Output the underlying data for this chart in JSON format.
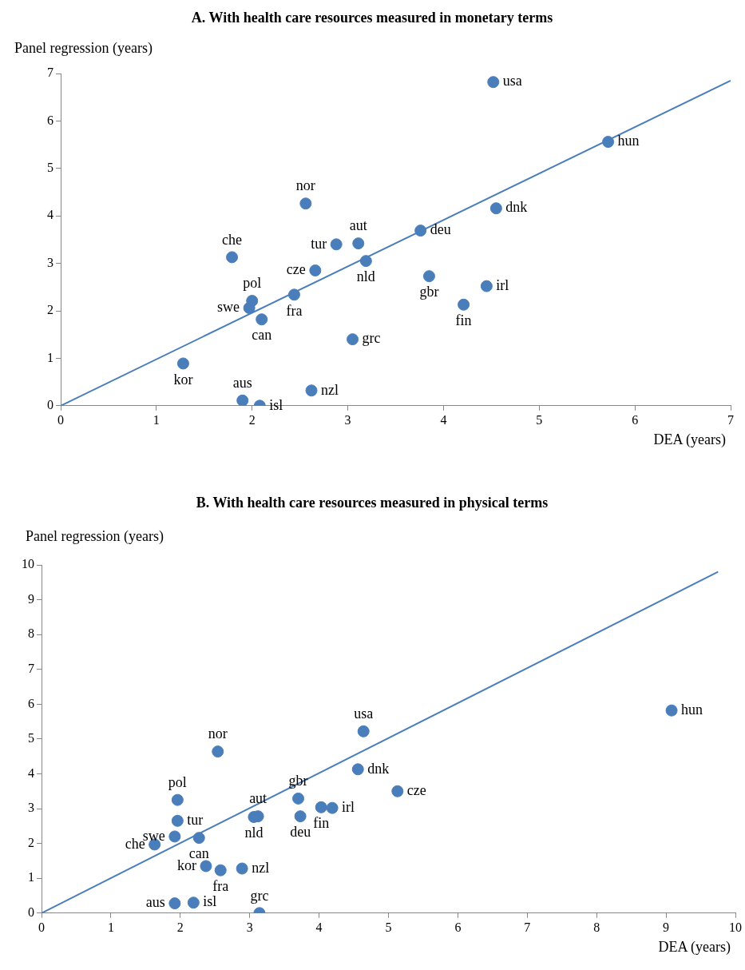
{
  "chart_data": [
    {
      "type": "scatter",
      "title": "A. With health care resources measured in monetary terms",
      "xlabel": "DEA (years)",
      "ylabel": "Panel regression (years)",
      "xlim": [
        0,
        7
      ],
      "ylim": [
        0,
        7
      ],
      "xticks": [
        0,
        1,
        2,
        3,
        4,
        5,
        6,
        7
      ],
      "yticks": [
        0,
        1,
        2,
        3,
        4,
        5,
        6,
        7
      ],
      "grid": false,
      "legend": false,
      "marker": "circle",
      "series": [
        {
          "color": "#4a7ebb",
          "x": [
            4.52,
            5.72,
            4.55,
            3.76,
            2.56,
            3.11,
            2.88,
            1.79,
            2.66,
            3.19,
            3.85,
            4.45,
            2.0,
            2.44,
            1.97,
            4.21,
            2.1,
            3.05,
            1.28,
            1.9,
            2.08,
            2.62
          ],
          "values": [
            6.82,
            5.56,
            4.16,
            3.69,
            4.26,
            3.42,
            3.4,
            3.13,
            2.85,
            3.05,
            2.73,
            2.52,
            2.21,
            2.34,
            2.06,
            2.13,
            1.82,
            1.4,
            0.89,
            0.11,
            0.0,
            0.32
          ],
          "value_labels": [
            "usa",
            "hun",
            "dnk",
            "deu",
            "nor",
            "aut",
            "tur",
            "che",
            "cze",
            "nld",
            "gbr",
            "irl",
            "pol",
            "fra",
            "swe",
            "fin",
            "can",
            "grc",
            "kor",
            "aus",
            "isl",
            "nzl"
          ]
        },
        {
          "type": "line",
          "color": "#4a7ebb",
          "marker": "none",
          "x": [
            0,
            7
          ],
          "values": [
            0,
            6.85
          ]
        }
      ]
    },
    {
      "type": "scatter",
      "title": "B. With health care resources measured in physical terms",
      "xlabel": "DEA (years)",
      "ylabel": "Panel regression (years)",
      "xlim": [
        0,
        10
      ],
      "ylim": [
        0,
        10
      ],
      "xticks": [
        0,
        1,
        2,
        3,
        4,
        5,
        6,
        7,
        8,
        9,
        10
      ],
      "yticks": [
        0,
        1,
        2,
        3,
        4,
        5,
        6,
        7,
        8,
        9,
        10
      ],
      "grid": false,
      "legend": false,
      "marker": "circle",
      "series": [
        {
          "color": "#4a7ebb",
          "x": [
            9.08,
            4.64,
            2.54,
            4.56,
            5.13,
            1.96,
            3.7,
            1.96,
            3.12,
            3.06,
            4.03,
            4.19,
            3.73,
            1.92,
            2.27,
            1.63,
            2.37,
            2.58,
            2.89,
            1.92,
            2.19,
            3.14
          ],
          "values": [
            5.82,
            5.22,
            4.64,
            4.13,
            3.5,
            3.25,
            3.29,
            2.65,
            2.78,
            2.76,
            3.04,
            3.02,
            2.78,
            2.2,
            2.16,
            1.97,
            1.35,
            1.23,
            1.28,
            0.28,
            0.3,
            0.0
          ],
          "value_labels": [
            "hun",
            "usa",
            "nor",
            "dnk",
            "cze",
            "pol",
            "gbr",
            "tur",
            "aut",
            "nld",
            "fin",
            "irl",
            "deu",
            "swe",
            "can",
            "che",
            "kor",
            "fra",
            "nzl",
            "aus",
            "isl",
            "grc"
          ]
        },
        {
          "type": "line",
          "color": "#4a7ebb",
          "marker": "none",
          "x": [
            0,
            9.75
          ],
          "values": [
            0,
            9.8
          ]
        }
      ]
    }
  ]
}
